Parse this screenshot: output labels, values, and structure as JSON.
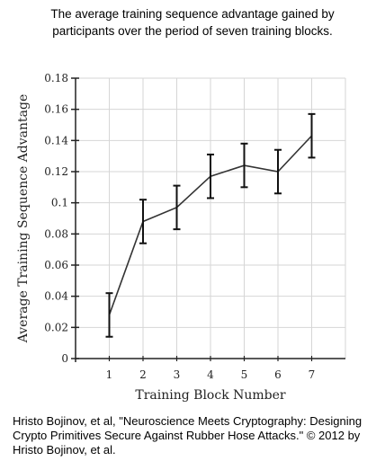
{
  "chart_data": {
    "type": "line",
    "title_lines": [
      "The average training sequence advantage gained by",
      "participants over the period of seven training blocks."
    ],
    "xlabel": "Training Block Number",
    "ylabel": "Average Training Sequence Advantage",
    "x": [
      1,
      2,
      3,
      4,
      5,
      6,
      7
    ],
    "y": [
      0.028,
      0.088,
      0.097,
      0.117,
      0.124,
      0.12,
      0.143
    ],
    "error": [
      0.014,
      0.014,
      0.014,
      0.014,
      0.014,
      0.014,
      0.014
    ],
    "xlim": [
      0,
      8
    ],
    "ylim": [
      0,
      0.18
    ],
    "xticks": [
      "1",
      "2",
      "3",
      "4",
      "5",
      "6",
      "7"
    ],
    "yticks": [
      "0",
      "0.02",
      "0.04",
      "0.06",
      "0.08",
      "0.1",
      "0.12",
      "0.14",
      "0.16",
      "0.18"
    ],
    "grid": true,
    "line_color": "#333333",
    "grid_color": "#d6d6d6"
  },
  "caption": "Hristo Bojinov, et al, \"Neuroscience Meets Cryptography: Designing Crypto Primitives Secure Against Rubber Hose Attacks.\" © 2012 by Hristo Bojinov, et al."
}
